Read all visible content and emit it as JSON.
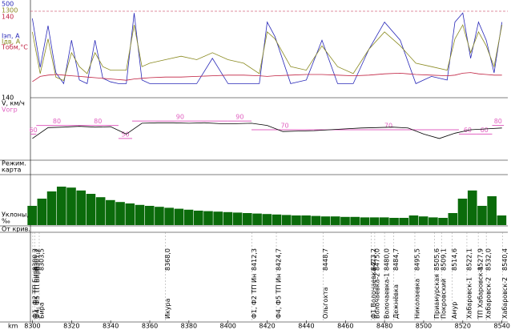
{
  "chart_data": [
    {
      "type": "line",
      "x": [
        8300,
        8304,
        8308,
        8312,
        8316,
        8320,
        8324,
        8328,
        8332,
        8336,
        8340,
        8344,
        8348,
        8352,
        8356,
        8360,
        8368,
        8376,
        8384,
        8392,
        8400,
        8408,
        8416,
        8420,
        8424,
        8432,
        8440,
        8448,
        8456,
        8464,
        8472,
        8480,
        8488,
        8496,
        8504,
        8512,
        8516,
        8520,
        8524,
        8528,
        8532,
        8536,
        8540
      ],
      "series": [
        {
          "name": "Iэп, A",
          "color": "#2828b8",
          "ylim": [
            0,
            500
          ],
          "yticks": [
            500
          ],
          "values": [
            420,
            150,
            380,
            120,
            60,
            300,
            80,
            60,
            300,
            90,
            70,
            60,
            60,
            450,
            80,
            60,
            60,
            60,
            60,
            200,
            60,
            60,
            60,
            400,
            320,
            60,
            80,
            300,
            60,
            60,
            250,
            400,
            300,
            60,
            100,
            80,
            400,
            450,
            200,
            400,
            300,
            120,
            400
          ]
        },
        {
          "name": "Iдв, A",
          "color": "#8a8a20",
          "ylim": [
            0,
            1300
          ],
          "yticks": [
            1300
          ],
          "values": [
            900,
            300,
            800,
            250,
            200,
            600,
            400,
            300,
            600,
            400,
            350,
            350,
            350,
            1000,
            400,
            450,
            500,
            550,
            500,
            600,
            500,
            450,
            300,
            900,
            800,
            400,
            350,
            700,
            400,
            300,
            650,
            900,
            700,
            450,
            400,
            350,
            800,
            1000,
            600,
            900,
            700,
            400,
            1000
          ]
        },
        {
          "name": "Тобм,°C",
          "color": "#c02040",
          "ylim": [
            0,
            140
          ],
          "yticks": [
            140
          ],
          "values": [
            20,
            28,
            30,
            31,
            30,
            29,
            28,
            27,
            26,
            25,
            24,
            23,
            22,
            24,
            25,
            26,
            27,
            27,
            28,
            29,
            30,
            30,
            29,
            28,
            29,
            30,
            31,
            31,
            30,
            29,
            30,
            32,
            33,
            31,
            30,
            29,
            30,
            33,
            34,
            32,
            31,
            30,
            30
          ]
        }
      ]
    },
    {
      "type": "line",
      "x": [
        8300,
        8308,
        8316,
        8324,
        8332,
        8340,
        8348,
        8356,
        8364,
        8372,
        8380,
        8388,
        8396,
        8404,
        8412,
        8420,
        8428,
        8436,
        8444,
        8452,
        8460,
        8468,
        8476,
        8484,
        8492,
        8500,
        8508,
        8516,
        8524,
        8532,
        8540
      ],
      "ylim": [
        0,
        140
      ],
      "yticks": [
        140
      ],
      "series": [
        {
          "name": "V, км/ч",
          "color": "#000000",
          "values": [
            50,
            75,
            76,
            78,
            76,
            77,
            60,
            85,
            86,
            86,
            85,
            86,
            84,
            84,
            85,
            80,
            66,
            67,
            68,
            70,
            72,
            74,
            75,
            76,
            74,
            60,
            50,
            62,
            70,
            72,
            74
          ]
        }
      ],
      "limit": {
        "name": "Vогр",
        "color": "#e060c0",
        "edges": [
          8299,
          8302,
          8323,
          8344,
          8351,
          8400,
          8412,
          8446,
          8518,
          8527,
          8535,
          8541
        ],
        "values": [
          60,
          80,
          80,
          50,
          90,
          90,
          70,
          70,
          60,
          60,
          80
        ]
      }
    },
    {
      "type": "bar",
      "label": [
        "Уклоны,",
        "‰"
      ],
      "color": "#0b6b0b",
      "ylim": [
        0,
        100
      ],
      "x": [
        8300,
        8305,
        8310,
        8315,
        8320,
        8325,
        8330,
        8335,
        8340,
        8345,
        8350,
        8355,
        8360,
        8365,
        8370,
        8375,
        8380,
        8385,
        8390,
        8395,
        8400,
        8405,
        8410,
        8415,
        8420,
        8425,
        8430,
        8435,
        8440,
        8445,
        8450,
        8455,
        8460,
        8465,
        8470,
        8475,
        8480,
        8485,
        8490,
        8495,
        8500,
        8505,
        8510,
        8515,
        8520,
        8525,
        8530,
        8535,
        8540
      ],
      "values": [
        40,
        55,
        70,
        80,
        78,
        72,
        65,
        58,
        52,
        48,
        45,
        42,
        40,
        38,
        36,
        34,
        32,
        30,
        29,
        28,
        27,
        26,
        25,
        24,
        23,
        22,
        21,
        20,
        20,
        19,
        18,
        18,
        17,
        17,
        16,
        16,
        16,
        15,
        15,
        20,
        18,
        16,
        15,
        25,
        55,
        72,
        40,
        60,
        20
      ]
    }
  ],
  "mode_label": [
    "Режим.",
    "карта"
  ],
  "curve_label": "От крив.",
  "x_axis": {
    "label": "km",
    "xlim": [
      8299,
      8543
    ],
    "xticks": [
      8300,
      8320,
      8340,
      8360,
      8380,
      8400,
      8420,
      8440,
      8460,
      8480,
      8500,
      8520,
      8540
    ]
  },
  "stations": [
    {
      "km": {
        "value": 8300.2,
        "label": "8300,2"
      },
      "name": "Ф1, Ф2 ТП Бира"
    },
    {
      "km": {
        "value": 8301.2,
        "label": "8301,2"
      },
      "name": "Ф4, Ф5 ТП Бира"
    },
    {
      "km": {
        "value": 8303.5,
        "label": "8303,5"
      },
      "name": "Бира"
    },
    {
      "km": {
        "value": 8368.0,
        "label": "8368,0"
      },
      "name": "Икура"
    },
    {
      "km": {
        "value": 8412.3,
        "label": "8412,3"
      },
      "name": "Ф1, Ф2 ТП Ин"
    },
    {
      "km": {
        "value": 8424.7,
        "label": "8424,7"
      },
      "name": "Ф4, Ф5 ТП Ин"
    },
    {
      "km": {
        "value": 8448.7,
        "label": "8448,7"
      },
      "name": "Ольгохта"
    },
    {
      "km": {
        "value": 8473.2,
        "label": "8473,2"
      },
      "name": "Ф1 Волочаевка-2"
    },
    {
      "km": {
        "value": 8475.0,
        "label": "8475,0"
      },
      "name": "Волочаевка-2"
    },
    {
      "km": {
        "value": 8480.0,
        "label": "8480,0"
      },
      "name": "Волочаевка-1"
    },
    {
      "km": {
        "value": 8484.7,
        "label": "8484,7"
      },
      "name": "Дежнёвка"
    },
    {
      "km": {
        "value": 8495.5,
        "label": "8495,5"
      },
      "name": "Николаевка"
    },
    {
      "km": {
        "value": 8505.6,
        "label": "8505,6"
      },
      "name": "Приамурская"
    },
    {
      "km": {
        "value": 8509.1,
        "label": "8509,1"
      },
      "name": "Покровский"
    },
    {
      "km": {
        "value": 8514.6,
        "label": "8514,6"
      },
      "name": "Амур"
    },
    {
      "km": {
        "value": 8522.1,
        "label": "8522,1"
      },
      "name": "Хабаровск-1"
    },
    {
      "km": {
        "value": 8527.9,
        "label": "8527,9"
      },
      "name": "ТП Хабаровск-1"
    },
    {
      "km": {
        "value": 8532.0,
        "label": "8532,0"
      },
      "name": "Хабаровск-2"
    },
    {
      "km": {
        "value": 8540.4,
        "label": "8540,4"
      },
      "name": "Хабаровск-2"
    }
  ]
}
